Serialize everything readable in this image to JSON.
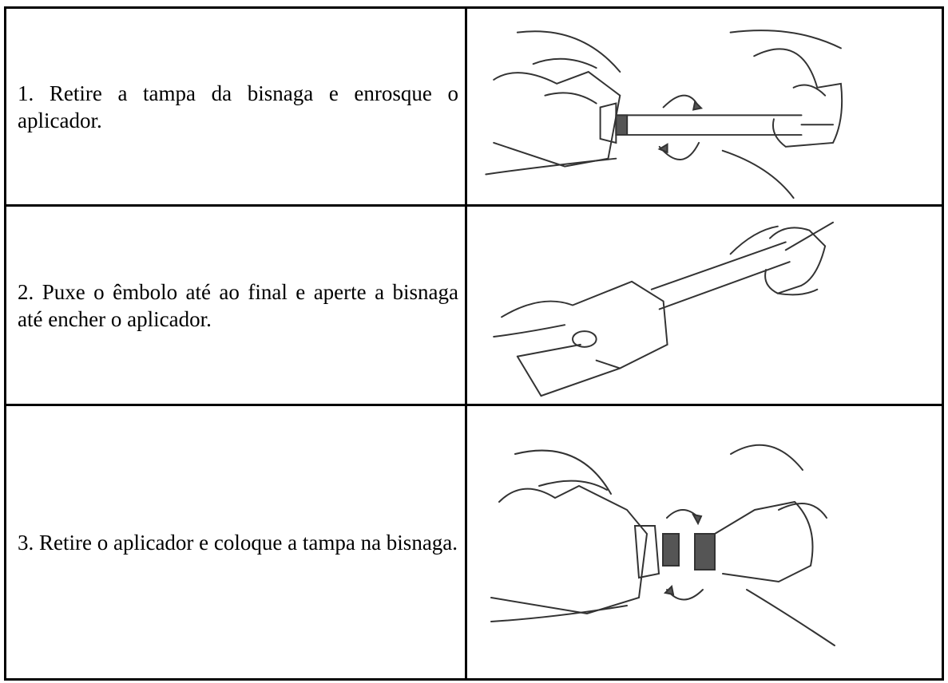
{
  "table": {
    "rows": [
      {
        "text": "1. Retire a tampa da bisnaga e enrosque o aplicador."
      },
      {
        "text": "2. Puxe o êmbolo até ao final e aperte a bisnaga até encher o aplicador."
      },
      {
        "text": "3. Retire o aplicador e coloque a tampa na bisnaga."
      }
    ]
  }
}
